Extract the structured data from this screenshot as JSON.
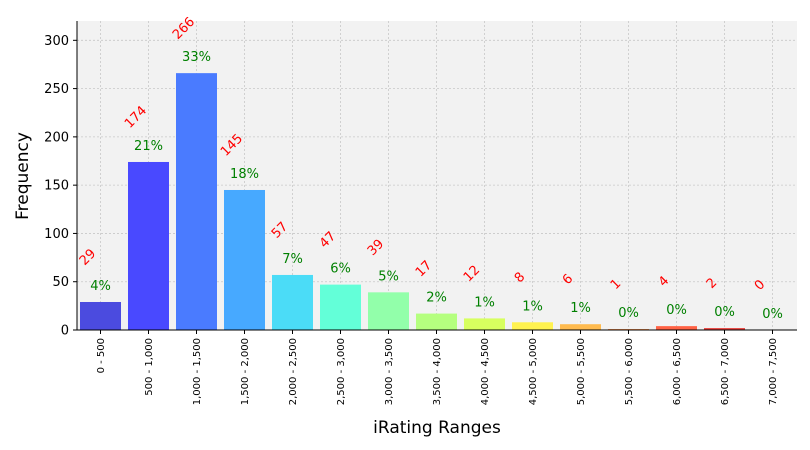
{
  "chart_data": {
    "type": "bar",
    "xlabel": "iRating Ranges",
    "ylabel": "Frequency",
    "ylim": [
      0,
      320
    ],
    "yticks": [
      0,
      50,
      100,
      150,
      200,
      250,
      300
    ],
    "grid": true,
    "categories": [
      "0 - 500",
      "500 - 1,000",
      "1,000 - 1,500",
      "1,500 - 2,000",
      "2,000 - 2,500",
      "2,500 - 3,000",
      "3,000 - 3,500",
      "3,500 - 4,000",
      "4,000 - 4,500",
      "4,500 - 5,000",
      "5,000 - 5,500",
      "5,500 - 6,000",
      "6,000 - 6,500",
      "6,500 - 7,000",
      "7,000 - 7,500"
    ],
    "values": [
      29,
      174,
      266,
      145,
      57,
      47,
      39,
      17,
      12,
      8,
      6,
      1,
      4,
      2,
      0
    ],
    "count_labels": [
      "29",
      "174",
      "266",
      "145",
      "57",
      "47",
      "39",
      "17",
      "12",
      "8",
      "6",
      "1",
      "4",
      "2",
      "0"
    ],
    "percent_labels": [
      "4%",
      "21%",
      "33%",
      "18%",
      "7%",
      "6%",
      "5%",
      "2%",
      "1%",
      "1%",
      "1%",
      "0%",
      "0%",
      "0%",
      "0%"
    ],
    "colors": [
      "#4b4bdf",
      "#4949ff",
      "#4a7bff",
      "#47a9ff",
      "#4bdcf7",
      "#63ffd8",
      "#92ffaa",
      "#b5ff7f",
      "#d7ff5f",
      "#fff24f",
      "#ffbb4f",
      "#ff934f",
      "#ff6245",
      "#e8413d",
      "#c23a3a"
    ],
    "count_label_color": "#ff0000",
    "percent_label_color": "#008000",
    "plot_background": "#f2f2f2"
  }
}
